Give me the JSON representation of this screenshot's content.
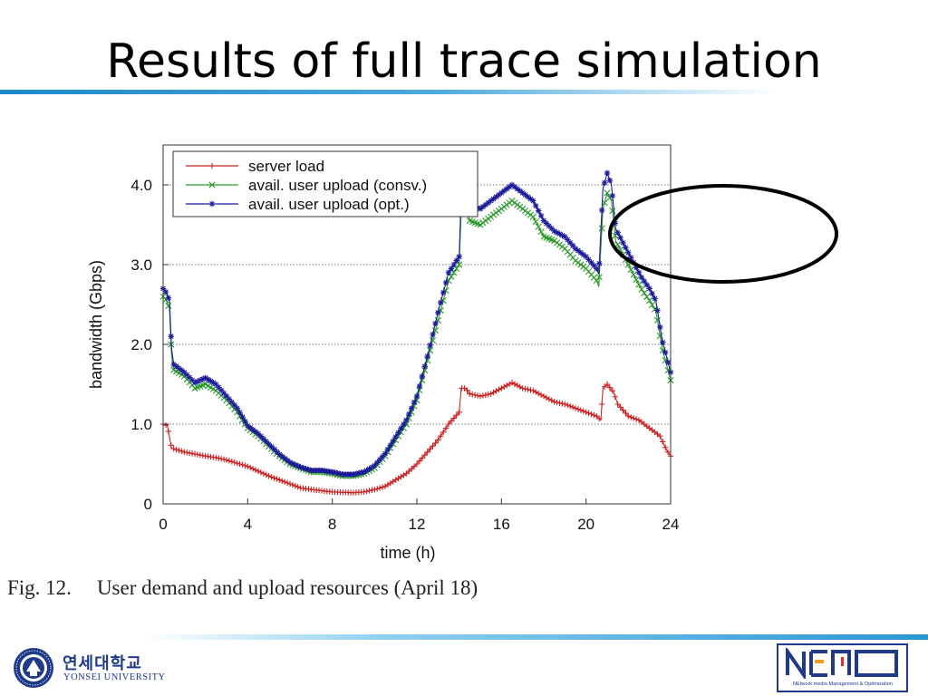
{
  "slide": {
    "title": "Results of full trace simulation",
    "caption_number": "Fig. 12.",
    "caption_text": "User demand and upload resources (April 18)"
  },
  "logos": {
    "yonsei_korean": "연세대학교",
    "yonsei_english": "YONSEI UNIVERSITY",
    "yonsei_seal_text": "YONSEI UNIVERSITY",
    "nemo_mark": "NEMO",
    "nemo_tagline": "NEtwork media Management & Optimization"
  },
  "colors": {
    "title_rule": "#1e88c9",
    "server_load": "#cc2222",
    "avail_consv": "#2a9a2a",
    "avail_opt": "#1a1a9a",
    "ellipse": "#000000",
    "logo_blue": "#1f3a8a",
    "logo_orange": "#f39a1e"
  },
  "annotation": {
    "shape": "ellipse",
    "target": "late-hours spike region (around 21–24 h)"
  },
  "chart_data": {
    "type": "line",
    "title": "",
    "xlabel": "time (h)",
    "ylabel": "bandwidth (Gbps)",
    "xlim": [
      0,
      24
    ],
    "ylim": [
      0,
      4.5
    ],
    "xticks": [
      0,
      4,
      8,
      12,
      16,
      20,
      24
    ],
    "xtick_labels": [
      "0",
      "4",
      "8",
      "12",
      "16",
      "20",
      "24"
    ],
    "yticks": [
      0,
      1,
      2,
      3,
      4
    ],
    "ytick_labels": [
      "0",
      "1.0",
      "2.0",
      "3.0",
      "4.0"
    ],
    "grid": "horizontal dotted",
    "legend_position": "top-left",
    "series": [
      {
        "name": "server load",
        "marker": "+",
        "color": "#cc2222",
        "points": [
          [
            0,
            1.0
          ],
          [
            0.2,
            0.98
          ],
          [
            0.4,
            0.7
          ],
          [
            1,
            0.65
          ],
          [
            2,
            0.6
          ],
          [
            2.5,
            0.58
          ],
          [
            3,
            0.55
          ],
          [
            4,
            0.47
          ],
          [
            5,
            0.35
          ],
          [
            6,
            0.25
          ],
          [
            6.5,
            0.2
          ],
          [
            7,
            0.18
          ],
          [
            8,
            0.15
          ],
          [
            9,
            0.14
          ],
          [
            9.5,
            0.15
          ],
          [
            10,
            0.18
          ],
          [
            10.5,
            0.22
          ],
          [
            11,
            0.3
          ],
          [
            11.5,
            0.38
          ],
          [
            12,
            0.5
          ],
          [
            12.5,
            0.65
          ],
          [
            13,
            0.8
          ],
          [
            13.5,
            1.0
          ],
          [
            14,
            1.15
          ],
          [
            14.1,
            1.45
          ],
          [
            14.3,
            1.45
          ],
          [
            14.5,
            1.38
          ],
          [
            15,
            1.35
          ],
          [
            15.5,
            1.38
          ],
          [
            16,
            1.45
          ],
          [
            16.5,
            1.52
          ],
          [
            17,
            1.45
          ],
          [
            17.5,
            1.42
          ],
          [
            18,
            1.35
          ],
          [
            18.5,
            1.28
          ],
          [
            19,
            1.25
          ],
          [
            19.5,
            1.2
          ],
          [
            20,
            1.15
          ],
          [
            20.5,
            1.1
          ],
          [
            20.7,
            1.05
          ],
          [
            20.8,
            1.45
          ],
          [
            21,
            1.5
          ],
          [
            21.3,
            1.4
          ],
          [
            21.5,
            1.25
          ],
          [
            22,
            1.1
          ],
          [
            22.5,
            1.05
          ],
          [
            23,
            0.95
          ],
          [
            23.5,
            0.85
          ],
          [
            23.8,
            0.68
          ],
          [
            24,
            0.6
          ]
        ]
      },
      {
        "name": "avail. user upload (consv.)",
        "marker": "x",
        "color": "#2a9a2a",
        "points": [
          [
            0,
            2.6
          ],
          [
            0.15,
            2.55
          ],
          [
            0.3,
            2.45
          ],
          [
            0.4,
            1.85
          ],
          [
            0.5,
            1.68
          ],
          [
            1,
            1.6
          ],
          [
            1.5,
            1.45
          ],
          [
            2,
            1.5
          ],
          [
            2.5,
            1.42
          ],
          [
            3,
            1.3
          ],
          [
            3.5,
            1.15
          ],
          [
            4,
            0.95
          ],
          [
            4.5,
            0.85
          ],
          [
            5,
            0.72
          ],
          [
            5.5,
            0.6
          ],
          [
            6,
            0.5
          ],
          [
            6.5,
            0.45
          ],
          [
            7,
            0.4
          ],
          [
            7.5,
            0.4
          ],
          [
            8,
            0.38
          ],
          [
            8.5,
            0.35
          ],
          [
            9,
            0.35
          ],
          [
            9.5,
            0.38
          ],
          [
            10,
            0.45
          ],
          [
            10.5,
            0.6
          ],
          [
            11,
            0.8
          ],
          [
            11.5,
            1.0
          ],
          [
            12,
            1.3
          ],
          [
            12.5,
            1.8
          ],
          [
            13,
            2.3
          ],
          [
            13.5,
            2.8
          ],
          [
            14,
            3.0
          ],
          [
            14.1,
            3.7
          ],
          [
            14.3,
            3.75
          ],
          [
            14.5,
            3.55
          ],
          [
            15,
            3.5
          ],
          [
            15.5,
            3.6
          ],
          [
            16,
            3.7
          ],
          [
            16.5,
            3.8
          ],
          [
            17,
            3.7
          ],
          [
            17.5,
            3.6
          ],
          [
            18,
            3.35
          ],
          [
            18.5,
            3.3
          ],
          [
            19,
            3.2
          ],
          [
            19.5,
            3.05
          ],
          [
            20,
            2.95
          ],
          [
            20.5,
            2.8
          ],
          [
            20.6,
            2.72
          ],
          [
            20.8,
            3.7
          ],
          [
            21,
            3.9
          ],
          [
            21.2,
            3.8
          ],
          [
            21.4,
            3.3
          ],
          [
            21.8,
            3.1
          ],
          [
            22.2,
            2.9
          ],
          [
            22.6,
            2.7
          ],
          [
            23,
            2.55
          ],
          [
            23.3,
            2.42
          ],
          [
            23.6,
            1.95
          ],
          [
            24,
            1.55
          ]
        ]
      },
      {
        "name": "avail. user upload (opt.)",
        "marker": "*",
        "color": "#1a1a9a",
        "points": [
          [
            0,
            2.7
          ],
          [
            0.15,
            2.65
          ],
          [
            0.3,
            2.55
          ],
          [
            0.4,
            1.95
          ],
          [
            0.5,
            1.75
          ],
          [
            1,
            1.65
          ],
          [
            1.5,
            1.52
          ],
          [
            2,
            1.58
          ],
          [
            2.5,
            1.5
          ],
          [
            3,
            1.35
          ],
          [
            3.5,
            1.2
          ],
          [
            4,
            0.98
          ],
          [
            4.5,
            0.88
          ],
          [
            5,
            0.75
          ],
          [
            5.5,
            0.62
          ],
          [
            6,
            0.52
          ],
          [
            6.5,
            0.46
          ],
          [
            7,
            0.42
          ],
          [
            7.5,
            0.42
          ],
          [
            8,
            0.4
          ],
          [
            8.5,
            0.37
          ],
          [
            9,
            0.37
          ],
          [
            9.5,
            0.4
          ],
          [
            10,
            0.48
          ],
          [
            10.5,
            0.63
          ],
          [
            11,
            0.84
          ],
          [
            11.5,
            1.05
          ],
          [
            12,
            1.35
          ],
          [
            12.5,
            1.85
          ],
          [
            13,
            2.4
          ],
          [
            13.5,
            2.9
          ],
          [
            14,
            3.1
          ],
          [
            14.1,
            3.9
          ],
          [
            14.3,
            4.0
          ],
          [
            14.5,
            3.75
          ],
          [
            15,
            3.7
          ],
          [
            15.5,
            3.8
          ],
          [
            16,
            3.9
          ],
          [
            16.5,
            4.0
          ],
          [
            17,
            3.9
          ],
          [
            17.5,
            3.8
          ],
          [
            18,
            3.55
          ],
          [
            18.5,
            3.42
          ],
          [
            19,
            3.35
          ],
          [
            19.5,
            3.2
          ],
          [
            20,
            3.1
          ],
          [
            20.5,
            2.95
          ],
          [
            20.6,
            2.88
          ],
          [
            20.8,
            3.95
          ],
          [
            21,
            4.15
          ],
          [
            21.2,
            4.0
          ],
          [
            21.4,
            3.45
          ],
          [
            21.8,
            3.25
          ],
          [
            22.2,
            3.05
          ],
          [
            22.6,
            2.85
          ],
          [
            23,
            2.7
          ],
          [
            23.3,
            2.55
          ],
          [
            23.6,
            2.05
          ],
          [
            24,
            1.65
          ]
        ]
      }
    ]
  }
}
